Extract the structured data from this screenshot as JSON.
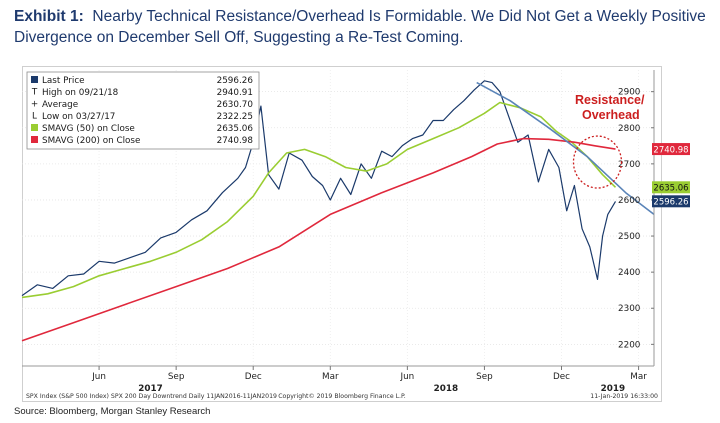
{
  "heading": {
    "lead": "Exhibit 1:",
    "text": "Nearby Technical Resistance/Overhead Is Formidable. We Did Not Get a Weekly Positive Divergence on December Sell Off, Suggesting a Re-Test Coming."
  },
  "source": "Source: Bloomberg, Morgan Stanley Research",
  "chart_data": {
    "type": "line",
    "legend": [
      {
        "label": "Last Price",
        "value": "2596.26",
        "color": "#1b3a6b"
      },
      {
        "label": "High on 09/21/18",
        "value": "2940.91",
        "marker": "T"
      },
      {
        "label": "Average",
        "value": "2630.70",
        "marker": "+"
      },
      {
        "label": "Low on 03/27/17",
        "value": "2322.25",
        "marker": "L"
      },
      {
        "label": "SMAVG (50)  on Close",
        "value": "2635.06",
        "color": "#9acd32"
      },
      {
        "label": "SMAVG (200) on Close",
        "value": "2740.98",
        "color": "#e0283c"
      }
    ],
    "ylim": [
      2140,
      2960
    ],
    "y_ticks": [
      2200,
      2300,
      2400,
      2500,
      2600,
      2700,
      2800,
      2900
    ],
    "x_range": [
      0,
      24.6
    ],
    "x_ticks": [
      {
        "label": "Jun",
        "x": 3.0
      },
      {
        "label": "Sep",
        "x": 6.0
      },
      {
        "label": "Dec",
        "x": 9.0
      },
      {
        "label": "Mar",
        "x": 12.0
      },
      {
        "label": "Jun",
        "x": 15.0
      },
      {
        "label": "Sep",
        "x": 18.0
      },
      {
        "label": "Dec",
        "x": 21.0
      },
      {
        "label": "Mar",
        "x": 24.0
      }
    ],
    "year_labels": [
      {
        "label": "2017",
        "x": 5.0
      },
      {
        "label": "2018",
        "x": 16.5
      },
      {
        "label": "2019",
        "x": 23.0
      }
    ],
    "value_tags": [
      {
        "label": "2740.98",
        "y": 2740.98,
        "bg": "#e0283c",
        "fg": "#ffffff"
      },
      {
        "label": "2635.06",
        "y": 2635.06,
        "bg": "#9acd32",
        "fg": "#111111"
      },
      {
        "label": "2596.26",
        "y": 2596.26,
        "bg": "#1b3a6b",
        "fg": "#ffffff"
      }
    ],
    "series": [
      {
        "name": "Last Price",
        "color": "#1b3a6b",
        "x": [
          0.0,
          0.6,
          1.2,
          1.8,
          2.4,
          3.0,
          3.6,
          4.2,
          4.8,
          5.4,
          6.0,
          6.6,
          7.2,
          7.8,
          8.4,
          8.7,
          9.0,
          9.3,
          9.6,
          10.0,
          10.4,
          10.9,
          11.3,
          11.7,
          12.0,
          12.4,
          12.8,
          13.2,
          13.6,
          14.0,
          14.4,
          14.8,
          15.2,
          15.6,
          16.0,
          16.4,
          16.8,
          17.2,
          17.6,
          18.0,
          18.3,
          18.6,
          18.9,
          19.3,
          19.7,
          20.1,
          20.5,
          20.9,
          21.2,
          21.5,
          21.8,
          22.1,
          22.4,
          22.6,
          22.8,
          23.1
        ],
        "y": [
          2335,
          2365,
          2355,
          2390,
          2395,
          2430,
          2425,
          2440,
          2455,
          2495,
          2510,
          2545,
          2570,
          2620,
          2660,
          2690,
          2760,
          2860,
          2670,
          2630,
          2730,
          2710,
          2665,
          2640,
          2600,
          2660,
          2615,
          2700,
          2660,
          2735,
          2720,
          2750,
          2770,
          2780,
          2820,
          2820,
          2850,
          2875,
          2905,
          2930,
          2925,
          2900,
          2840,
          2760,
          2780,
          2650,
          2740,
          2690,
          2570,
          2640,
          2520,
          2470,
          2380,
          2500,
          2560,
          2596
        ]
      },
      {
        "name": "SMAVG (50) on Close",
        "color": "#9acd32",
        "x": [
          0.0,
          1.0,
          2.0,
          3.0,
          4.0,
          5.0,
          6.0,
          7.0,
          8.0,
          9.0,
          9.6,
          10.3,
          11.0,
          11.8,
          12.6,
          13.4,
          14.2,
          15.0,
          16.0,
          17.0,
          18.0,
          18.6,
          19.4,
          20.2,
          20.8,
          21.4,
          22.0,
          22.6,
          23.1
        ],
        "y": [
          2330,
          2340,
          2360,
          2390,
          2410,
          2430,
          2455,
          2490,
          2540,
          2610,
          2675,
          2730,
          2740,
          2720,
          2690,
          2680,
          2700,
          2740,
          2770,
          2800,
          2840,
          2870,
          2855,
          2830,
          2790,
          2760,
          2720,
          2670,
          2635
        ]
      },
      {
        "name": "SMAVG (200) on Close",
        "color": "#e0283c",
        "x": [
          0.0,
          2.0,
          4.0,
          6.0,
          8.0,
          10.0,
          12.0,
          14.0,
          16.0,
          17.5,
          18.5,
          19.5,
          20.5,
          21.5,
          22.3,
          23.1
        ],
        "y": [
          2210,
          2260,
          2310,
          2360,
          2410,
          2470,
          2560,
          2620,
          2675,
          2720,
          2755,
          2770,
          2768,
          2760,
          2750,
          2741
        ]
      },
      {
        "name": "SPX 200 Day Downtrend",
        "color": "#5a84b8",
        "x": [
          17.7,
          19.0,
          20.5,
          22.0,
          23.5,
          24.6
        ],
        "y": [
          2925,
          2875,
          2800,
          2720,
          2620,
          2560
        ]
      }
    ],
    "annotation": {
      "line1": "Resistance/",
      "line2": "Overhead",
      "color": "#cc1f1f",
      "circle_x": 22.4,
      "circle_y": 2705
    },
    "footer_left": "SPX Index (S&P 500 Index) SPX 200 Day Downtrend  Daily 11JAN2016-11JAN2019",
    "footer_center": "Copyright© 2019 Bloomberg Finance L.P.",
    "footer_right": "11-Jan-2019 16:33:00"
  }
}
